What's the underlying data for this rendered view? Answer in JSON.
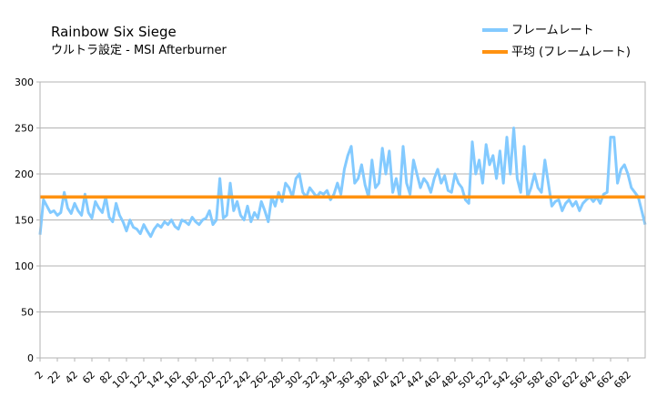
{
  "chart_data": {
    "type": "line",
    "title": "Rainbow Six Siege",
    "subtitle": "ウルトラ設定 - MSI Afterburner",
    "xlabel": "",
    "ylabel": "",
    "ylim": [
      0,
      300
    ],
    "yticks": [
      0,
      50,
      100,
      150,
      200,
      250,
      300
    ],
    "xlim": [
      2,
      702
    ],
    "xticks": [
      2,
      22,
      42,
      62,
      82,
      102,
      122,
      142,
      162,
      182,
      202,
      222,
      242,
      262,
      282,
      302,
      322,
      342,
      362,
      382,
      402,
      422,
      442,
      462,
      482,
      502,
      522,
      542,
      562,
      582,
      602,
      622,
      642,
      662,
      682
    ],
    "grid": true,
    "legend_position": "top-right",
    "series": [
      {
        "name": "フレームレート",
        "color": "#83caff",
        "x": [
          2,
          6,
          10,
          14,
          18,
          22,
          26,
          30,
          34,
          38,
          42,
          46,
          50,
          54,
          58,
          62,
          66,
          70,
          74,
          78,
          82,
          86,
          90,
          94,
          98,
          102,
          106,
          110,
          114,
          118,
          122,
          126,
          130,
          134,
          138,
          142,
          146,
          150,
          154,
          158,
          162,
          166,
          170,
          174,
          178,
          182,
          186,
          190,
          194,
          198,
          202,
          206,
          210,
          214,
          218,
          222,
          226,
          230,
          234,
          238,
          242,
          246,
          250,
          254,
          258,
          262,
          266,
          270,
          274,
          278,
          282,
          286,
          290,
          294,
          298,
          302,
          306,
          310,
          314,
          318,
          322,
          326,
          330,
          334,
          338,
          342,
          346,
          350,
          354,
          358,
          362,
          366,
          370,
          374,
          378,
          382,
          386,
          390,
          394,
          398,
          402,
          406,
          410,
          414,
          418,
          422,
          426,
          430,
          434,
          438,
          442,
          446,
          450,
          454,
          458,
          462,
          466,
          470,
          474,
          478,
          482,
          486,
          490,
          494,
          498,
          502,
          506,
          510,
          514,
          518,
          522,
          526,
          530,
          534,
          538,
          542,
          546,
          550,
          554,
          558,
          562,
          566,
          570,
          574,
          578,
          582,
          586,
          590,
          594,
          598,
          602,
          606,
          610,
          614,
          618,
          622,
          626,
          630,
          634,
          638,
          642,
          646,
          650,
          654,
          658,
          662,
          666,
          670,
          674,
          678,
          682,
          686,
          690,
          694,
          698,
          702
        ],
        "values": [
          134,
          172,
          165,
          158,
          160,
          155,
          158,
          180,
          163,
          157,
          168,
          160,
          155,
          178,
          158,
          152,
          170,
          163,
          158,
          175,
          153,
          148,
          168,
          155,
          148,
          138,
          150,
          142,
          140,
          135,
          145,
          138,
          132,
          140,
          145,
          142,
          148,
          145,
          150,
          143,
          140,
          150,
          148,
          145,
          153,
          148,
          145,
          150,
          152,
          160,
          145,
          150,
          195,
          152,
          155,
          190,
          160,
          170,
          155,
          150,
          165,
          148,
          158,
          152,
          170,
          160,
          148,
          175,
          165,
          180,
          170,
          190,
          185,
          175,
          195,
          200,
          180,
          175,
          185,
          180,
          175,
          180,
          178,
          182,
          172,
          178,
          190,
          178,
          205,
          220,
          230,
          190,
          195,
          210,
          188,
          175,
          215,
          185,
          190,
          228,
          200,
          225,
          180,
          195,
          175,
          230,
          190,
          178,
          215,
          200,
          185,
          195,
          190,
          180,
          195,
          205,
          190,
          198,
          182,
          180,
          200,
          190,
          185,
          172,
          168,
          235,
          200,
          215,
          190,
          232,
          210,
          220,
          195,
          225,
          190,
          240,
          200,
          250,
          195,
          180,
          230,
          175,
          185,
          200,
          185,
          180,
          215,
          190,
          165,
          170,
          172,
          160,
          168,
          172,
          165,
          170,
          160,
          168,
          172,
          175,
          170,
          175,
          168,
          178,
          180,
          240,
          240,
          190,
          205,
          210,
          200,
          185,
          180,
          175,
          160,
          145
        ]
      },
      {
        "name": "平均 (フレームレート)",
        "color": "#ff9211",
        "x": [
          2,
          702
        ],
        "values": [
          175,
          175
        ]
      }
    ]
  }
}
